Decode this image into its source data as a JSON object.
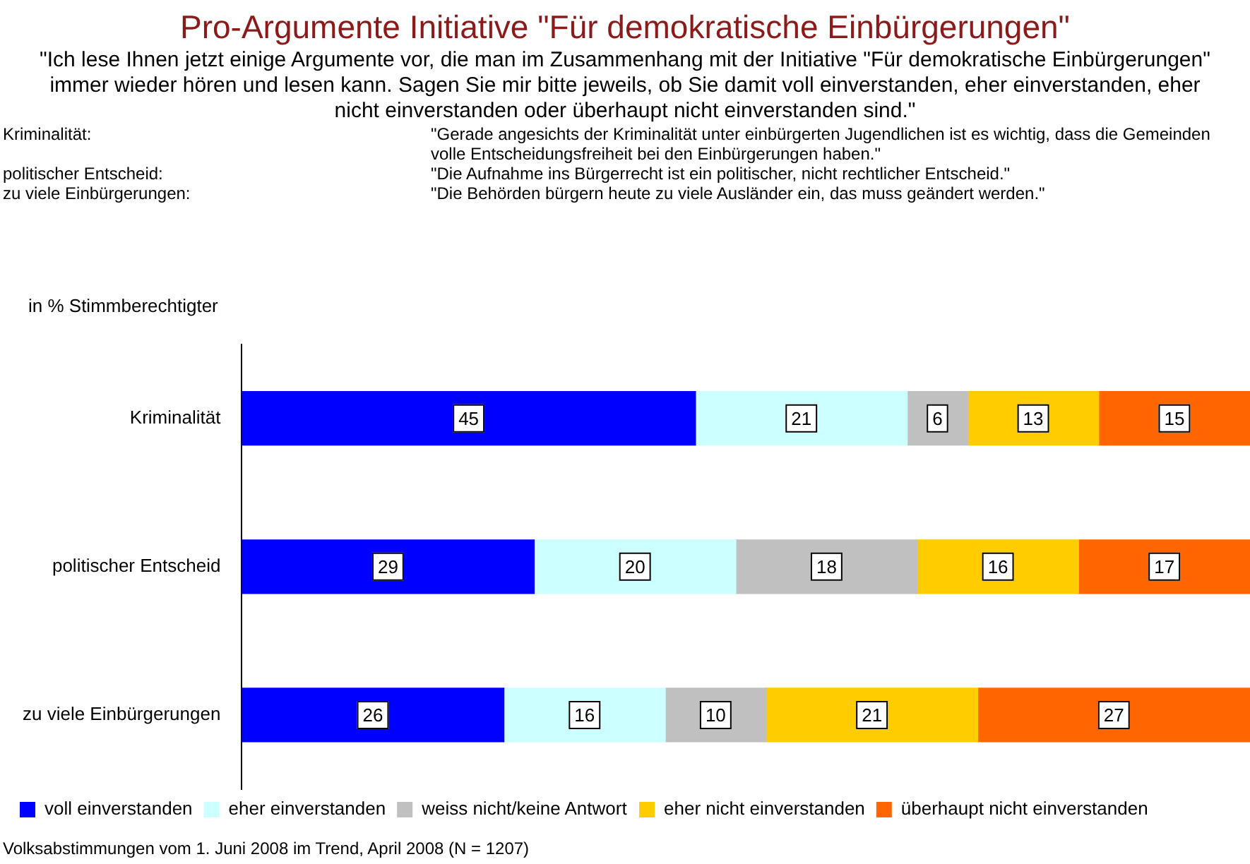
{
  "chart_data": {
    "type": "bar",
    "orientation": "horizontal",
    "stacked": true,
    "title": "Pro-Argumente Initiative \"Für demokratische Einbürgerungen\"",
    "subtitle": "\"Ich lese Ihnen jetzt einige Argumente vor, die man im Zusammenhang mit der Initiative \"Für demokratische Einbürgerungen\" immer wieder hören und lesen kann. Sagen Sie mir bitte jeweils, ob Sie damit voll einverstanden, eher einverstanden, eher nicht einverstanden oder überhaupt nicht einverstanden sind.\"",
    "annotations": [
      "Kriminalität:",
      "\"Gerade angesichts der Kriminalität unter einbürgerten Jugendlichen ist es wichtig, dass die Gemeinden volle Entscheidungsfreiheit bei den Einbürgerungen haben.\"",
      "politischer Entscheid:",
      "\"Die Aufnahme ins Bürgerrecht ist ein politischer, nicht rechtlicher Entscheid.\"",
      "zu viele Einbürgerungen:",
      "\"Die Behörden bürgern heute zu viele Ausländer ein, das muss geändert werden.\"",
      "in % Stimmberechtigter",
      "Volksabstimmungen vom 1. Juni 2008 im Trend, April 2008 (N = 1207)"
    ],
    "categories": [
      "Kriminalität",
      "politischer Entscheid",
      "zu viele Einbürgerungen"
    ],
    "series": [
      {
        "name": "voll einverstanden",
        "color": "#0000ff",
        "values": [
          45,
          29,
          26
        ]
      },
      {
        "name": "eher einverstanden",
        "color": "#ccffff",
        "values": [
          21,
          20,
          16
        ]
      },
      {
        "name": "weiss nicht/keine Antwort",
        "color": "#c0c0c0",
        "values": [
          6,
          18,
          10
        ]
      },
      {
        "name": "eher nicht einverstanden",
        "color": "#ffcc00",
        "values": [
          13,
          16,
          21
        ]
      },
      {
        "name": "überhaupt nicht einverstanden",
        "color": "#ff6600",
        "values": [
          15,
          17,
          27
        ]
      }
    ],
    "data_labels": true,
    "grid": false,
    "legend": "bottom",
    "tick_labels": "y"
  }
}
